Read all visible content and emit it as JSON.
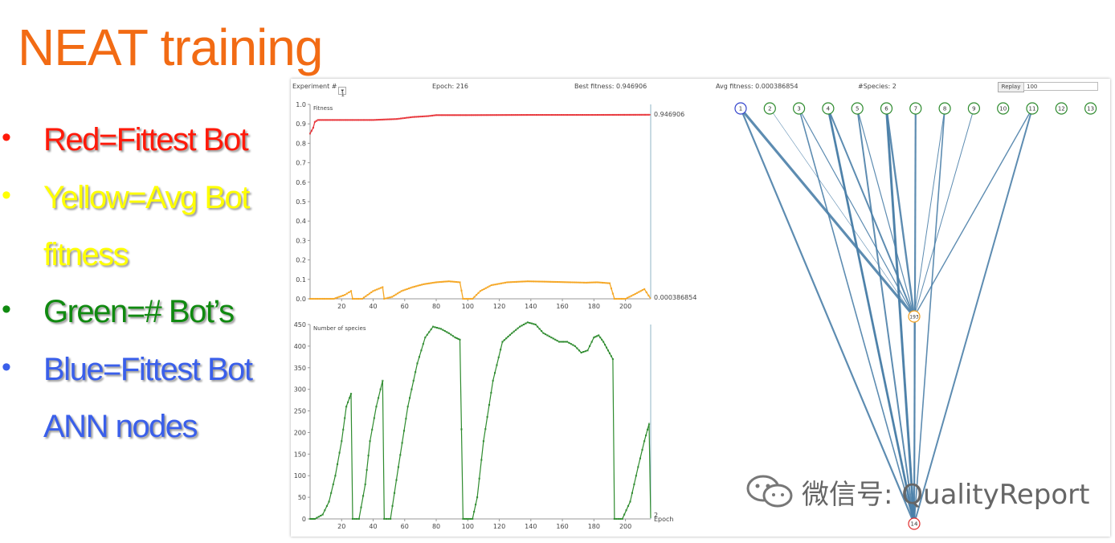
{
  "slide": {
    "title": "NEAT training",
    "bullets": [
      {
        "text": "Red=Fittest Bot",
        "color": "#ff1a0a",
        "top": 12
      },
      {
        "text": "Yellow=Avg Bot",
        "color": "#ffff00",
        "top": 84
      },
      {
        "text": "fitness",
        "color": "#ffff00",
        "top": 155,
        "nodot": true
      },
      {
        "text": "Green=# Bot’s",
        "color": "#108a10",
        "top": 226
      },
      {
        "text": "Blue=Fittest Bot",
        "color": "#3a5fea",
        "top": 298
      },
      {
        "text": "ANN nodes",
        "color": "#3a5fea",
        "top": 369,
        "nodot": true
      }
    ]
  },
  "toolbar": {
    "experiment_label": "Experiment #",
    "experiment_value": "1",
    "epoch": "Epoch: 216",
    "best_fitness": "Best fitness: 0.946906",
    "avg_fitness": "Avg fitness: 0.000386854",
    "species": "#Species: 2",
    "replay_label": "Replay",
    "replay_value": "100"
  },
  "watermark": "微信号: QualityReport",
  "chart_data": [
    {
      "type": "line",
      "title": "Fitness",
      "xlim": [
        0,
        216
      ],
      "ylim": [
        0,
        1.0
      ],
      "xticks": [
        20,
        40,
        60,
        80,
        100,
        120,
        140,
        160,
        180,
        200
      ],
      "yticks": [
        0,
        0.1,
        0.2,
        0.3,
        0.4,
        0.5,
        0.6,
        0.7,
        0.8,
        0.9,
        1.0
      ],
      "end_labels": [
        "0.946906",
        "0.000386854"
      ],
      "series": [
        {
          "color": "#e8353a",
          "points": [
            [
              0,
              0.85
            ],
            [
              2,
              0.88
            ],
            [
              3,
              0.91
            ],
            [
              5,
              0.92
            ],
            [
              20,
              0.92
            ],
            [
              40,
              0.92
            ],
            [
              55,
              0.925
            ],
            [
              60,
              0.93
            ],
            [
              65,
              0.935
            ],
            [
              75,
              0.94
            ],
            [
              80,
              0.945
            ],
            [
              100,
              0.945
            ],
            [
              140,
              0.946
            ],
            [
              180,
              0.946
            ],
            [
              216,
              0.9469
            ]
          ]
        },
        {
          "color": "#f5a623",
          "points": [
            [
              0,
              0.0
            ],
            [
              15,
              0.0
            ],
            [
              22,
              0.02
            ],
            [
              26,
              0.04
            ],
            [
              27,
              0.0
            ],
            [
              33,
              0.0
            ],
            [
              40,
              0.04
            ],
            [
              46,
              0.06
            ],
            [
              47,
              0.0
            ],
            [
              52,
              0.01
            ],
            [
              58,
              0.04
            ],
            [
              65,
              0.06
            ],
            [
              72,
              0.075
            ],
            [
              80,
              0.085
            ],
            [
              88,
              0.09
            ],
            [
              95,
              0.085
            ],
            [
              97,
              0.0
            ],
            [
              103,
              0.0
            ],
            [
              108,
              0.04
            ],
            [
              115,
              0.07
            ],
            [
              125,
              0.085
            ],
            [
              138,
              0.09
            ],
            [
              150,
              0.088
            ],
            [
              165,
              0.085
            ],
            [
              175,
              0.083
            ],
            [
              182,
              0.085
            ],
            [
              190,
              0.08
            ],
            [
              193,
              0.0
            ],
            [
              200,
              0.0
            ],
            [
              205,
              0.02
            ],
            [
              212,
              0.05
            ],
            [
              216,
              0.0004
            ]
          ]
        }
      ]
    },
    {
      "type": "line",
      "title": "Number of species",
      "xlabel": "Epoch",
      "xlim": [
        0,
        216
      ],
      "ylim": [
        0,
        450
      ],
      "xticks": [
        20,
        40,
        60,
        80,
        100,
        120,
        140,
        160,
        180,
        200
      ],
      "yticks": [
        0,
        50,
        100,
        150,
        200,
        250,
        300,
        350,
        400,
        450
      ],
      "end_labels": [
        "2"
      ],
      "series": [
        {
          "color": "#2e8b2e",
          "points": [
            [
              0,
              0
            ],
            [
              3,
              0
            ],
            [
              8,
              10
            ],
            [
              12,
              40
            ],
            [
              16,
              100
            ],
            [
              20,
              180
            ],
            [
              23,
              260
            ],
            [
              26,
              290
            ],
            [
              27,
              0
            ],
            [
              31,
              0
            ],
            [
              35,
              80
            ],
            [
              38,
              180
            ],
            [
              42,
              260
            ],
            [
              46,
              320
            ],
            [
              47,
              0
            ],
            [
              51,
              0
            ],
            [
              56,
              120
            ],
            [
              62,
              260
            ],
            [
              68,
              360
            ],
            [
              73,
              420
            ],
            [
              78,
              445
            ],
            [
              83,
              440
            ],
            [
              88,
              430
            ],
            [
              92,
              420
            ],
            [
              95,
              415
            ],
            [
              97,
              0
            ],
            [
              103,
              0
            ],
            [
              106,
              50
            ],
            [
              110,
              180
            ],
            [
              116,
              320
            ],
            [
              122,
              410
            ],
            [
              128,
              430
            ],
            [
              133,
              445
            ],
            [
              138,
              455
            ],
            [
              143,
              450
            ],
            [
              148,
              430
            ],
            [
              153,
              420
            ],
            [
              158,
              410
            ],
            [
              163,
              410
            ],
            [
              168,
              400
            ],
            [
              172,
              385
            ],
            [
              176,
              390
            ],
            [
              180,
              420
            ],
            [
              183,
              425
            ],
            [
              186,
              410
            ],
            [
              189,
              390
            ],
            [
              192,
              370
            ],
            [
              193,
              0
            ],
            [
              198,
              0
            ],
            [
              203,
              40
            ],
            [
              208,
              120
            ],
            [
              212,
              180
            ],
            [
              215,
              220
            ],
            [
              216,
              2
            ]
          ]
        }
      ]
    },
    {
      "type": "network",
      "input_nodes": [
        "1",
        "2",
        "3",
        "4",
        "5",
        "6",
        "7",
        "8",
        "9",
        "10",
        "11",
        "12",
        "13"
      ],
      "hidden_node": "193",
      "output_node": "14",
      "edges_to_output": [
        {
          "from": "1",
          "w": 2.2
        },
        {
          "from": "3",
          "w": 1.6
        },
        {
          "from": "4",
          "w": 2.8
        },
        {
          "from": "4",
          "w": 2.0
        },
        {
          "from": "5",
          "w": 2.0
        },
        {
          "from": "6",
          "w": 3.0
        },
        {
          "from": "6",
          "w": 2.0
        },
        {
          "from": "7",
          "w": 2.2
        },
        {
          "from": "8",
          "w": 1.6
        },
        {
          "from": "11",
          "w": 2.0
        },
        {
          "from": "193",
          "w": 1.0
        }
      ],
      "edges_to_hidden": [
        {
          "from": "1",
          "w": 3.2
        },
        {
          "from": "2",
          "w": 0.6
        },
        {
          "from": "3",
          "w": 1.2
        },
        {
          "from": "4",
          "w": 2.0
        },
        {
          "from": "5",
          "w": 1.2
        },
        {
          "from": "6",
          "w": 2.4
        },
        {
          "from": "8",
          "w": 1.0
        },
        {
          "from": "9",
          "w": 1.0
        },
        {
          "from": "11",
          "w": 1.4
        }
      ],
      "colors": {
        "edge": "#4b7fa8",
        "input_node": "#2e8b2e",
        "best_node": "#3344cc",
        "hidden_node": "#f0a020",
        "output_node": "#e03030"
      }
    }
  ]
}
